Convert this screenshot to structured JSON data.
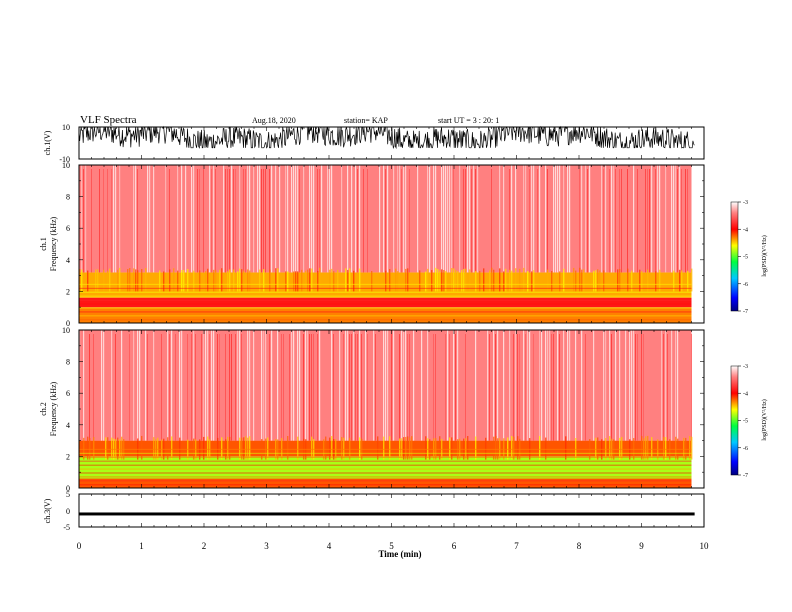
{
  "header": {
    "title": "VLF Spectra",
    "date": "Aug.18, 2020",
    "station": "station= KAP",
    "start": "start  UT =   3 : 20: 1"
  },
  "chart_data": [
    {
      "type": "line",
      "panel": "ch1-waveform",
      "ylabel": "ch.1(V)",
      "ylim": [
        -10,
        10
      ],
      "yticks": [
        "10",
        "-10"
      ],
      "xlim": [
        0,
        10
      ],
      "note": "saturated noisy waveform between about -2 and 10 V",
      "color": "#000000"
    },
    {
      "type": "heatmap",
      "panel": "ch1-spectrogram",
      "ylabel": "ch.1",
      "ylabel2": "Frequency (kHz)",
      "ylim": [
        0,
        10
      ],
      "yticks": [
        "0",
        "2",
        "4",
        "6",
        "8",
        "10"
      ],
      "xlim": [
        0,
        9.8
      ],
      "bands_khz": [
        {
          "from": 0,
          "to": 1.0,
          "level": -4.3
        },
        {
          "from": 1.0,
          "to": 1.6,
          "level": -3.9
        },
        {
          "from": 1.6,
          "to": 3.2,
          "level": -4.4
        },
        {
          "from": 3.2,
          "to": 10,
          "level": -3.4
        }
      ],
      "colorbar": {
        "min": -7,
        "max": -3,
        "ticks": [
          "-3",
          "-4",
          "-5",
          "-6",
          "-7"
        ],
        "label": "log(PSD)(V²/Hz)"
      }
    },
    {
      "type": "heatmap",
      "panel": "ch2-spectrogram",
      "ylabel": "ch.2",
      "ylabel2": "Frequency (kHz)",
      "ylim": [
        0,
        10
      ],
      "yticks": [
        "0",
        "2",
        "4",
        "6",
        "8",
        "10"
      ],
      "xlim": [
        0,
        9.8
      ],
      "bands_khz": [
        {
          "from": 0,
          "to": 0.6,
          "level": -4.2
        },
        {
          "from": 0.6,
          "to": 2.0,
          "level": -4.8
        },
        {
          "from": 2.0,
          "to": 3.0,
          "level": -4.2
        },
        {
          "from": 3.0,
          "to": 10,
          "level": -3.4
        }
      ],
      "colorbar": {
        "min": -7,
        "max": -3,
        "ticks": [
          "-3",
          "-4",
          "-5",
          "-6",
          "-7"
        ],
        "label": "log(PSD)(V²/Hz)"
      }
    },
    {
      "type": "line",
      "panel": "ch3-waveform",
      "ylabel": "ch.3(V)",
      "ylim": [
        -5,
        5
      ],
      "yticks": [
        "5",
        "0",
        "-5"
      ],
      "xlim": [
        0,
        10
      ],
      "note": "thick constant band near -1 V",
      "color": "#000000"
    }
  ],
  "xaxis": {
    "label": "Time (min)",
    "ticks": [
      "0",
      "1",
      "2",
      "3",
      "4",
      "5",
      "6",
      "7",
      "8",
      "9",
      "10"
    ]
  }
}
